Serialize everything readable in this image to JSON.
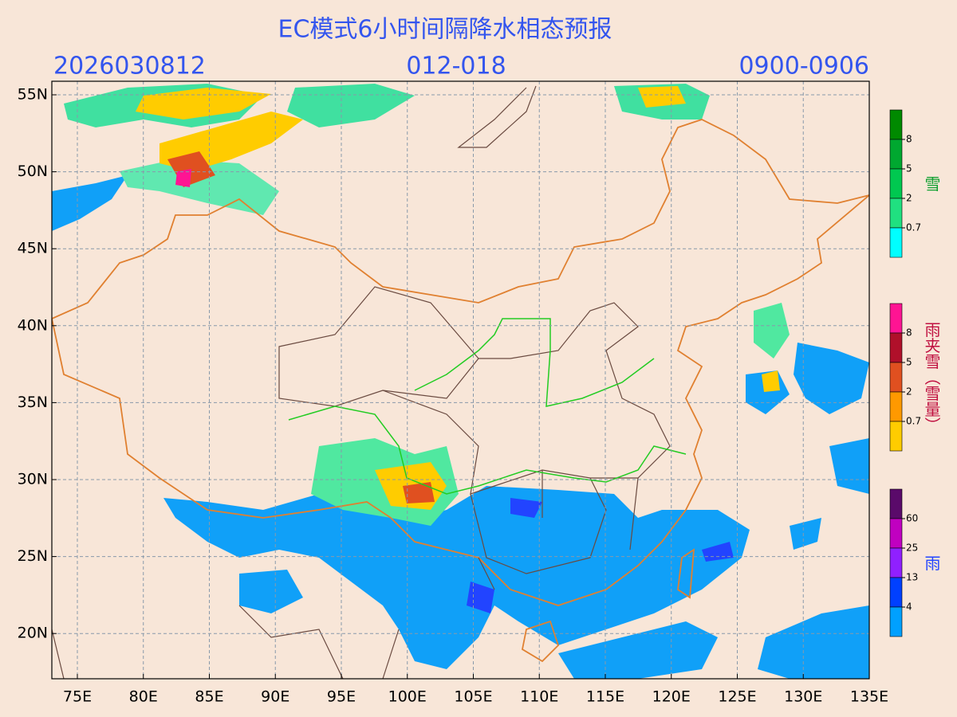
{
  "title": "EC模式6小时间隔降水相态预报",
  "header": {
    "left": "2026030812",
    "center": "012-018",
    "right": "0900-0906"
  },
  "map": {
    "lat_labels": [
      "55N",
      "50N",
      "45N",
      "40N",
      "35N",
      "30N",
      "25N",
      "20N"
    ],
    "lon_labels": [
      "75E",
      "80E",
      "85E",
      "90E",
      "95E",
      "100E",
      "105E",
      "110E",
      "115E",
      "120E",
      "125E",
      "130E",
      "135E"
    ]
  },
  "legends": [
    {
      "label": "雪",
      "levels": [
        "0.7",
        "2",
        "5",
        "8"
      ]
    },
    {
      "label": "雨夹雪（雪量）",
      "levels": [
        "0.7",
        "2",
        "5",
        "8"
      ]
    },
    {
      "label": "雨",
      "levels": [
        "4",
        "13",
        "25",
        "60"
      ]
    }
  ]
}
